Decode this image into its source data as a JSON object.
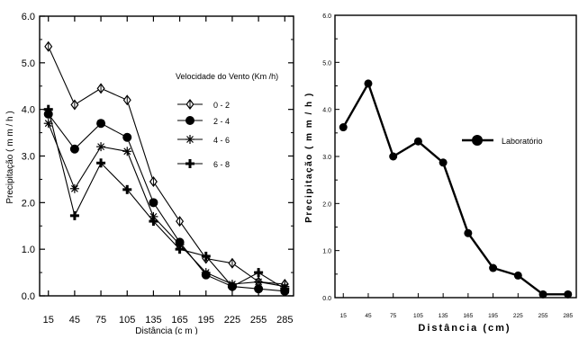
{
  "chart_data": [
    {
      "type": "line",
      "xlabel": "Distância (c m )",
      "ylabel": "Precipitação ( m m / h )",
      "x": [
        15,
        45,
        75,
        105,
        135,
        165,
        195,
        225,
        255,
        285
      ],
      "x_tick_labels": [
        "15",
        "45",
        "75",
        "105",
        "135",
        "165",
        "195",
        "225",
        "255",
        "285"
      ],
      "y_tick_labels": [
        "0.0",
        "1.0",
        "2.0",
        "3.0",
        "4.0",
        "5.0",
        "6.0"
      ],
      "ylim": [
        0,
        6
      ],
      "legend_title": "Velocidade do Vento (Km /h)",
      "legend_position": "right",
      "series": [
        {
          "name": "0 - 2",
          "marker": "diamond",
          "values": [
            5.35,
            4.1,
            4.45,
            4.2,
            2.45,
            1.6,
            0.8,
            0.7,
            0.3,
            0.25
          ]
        },
        {
          "name": "2 - 4",
          "marker": "circle",
          "values": [
            3.9,
            3.15,
            3.7,
            3.4,
            2.0,
            1.15,
            0.45,
            0.2,
            0.15,
            0.1
          ]
        },
        {
          "name": "4 - 6",
          "marker": "asterisk",
          "values": [
            3.7,
            2.3,
            3.2,
            3.1,
            1.7,
            1.1,
            0.5,
            0.25,
            0.3,
            0.2
          ]
        },
        {
          "name": "6 - 8",
          "marker": "cross",
          "values": [
            4.0,
            1.72,
            2.85,
            2.28,
            1.6,
            1.0,
            0.85,
            0.2,
            0.5,
            0.15
          ]
        }
      ]
    },
    {
      "type": "line",
      "xlabel": "Distância (cm)",
      "ylabel": "Precipitação ( m m / h )",
      "x": [
        15,
        45,
        75,
        105,
        135,
        165,
        195,
        225,
        255,
        285
      ],
      "x_tick_labels": [
        "15",
        "45",
        "75",
        "105",
        "135",
        "165",
        "195",
        "225",
        "255",
        "285"
      ],
      "y_tick_labels": [
        "0.0",
        "1.0",
        "2.0",
        "3.0",
        "4.0",
        "5.0",
        "6.0"
      ],
      "ylim": [
        0,
        6
      ],
      "legend_position": "right",
      "series": [
        {
          "name": "Laboratório",
          "marker": "circle",
          "values": [
            3.62,
            4.55,
            3.0,
            3.32,
            2.87,
            1.37,
            0.63,
            0.47,
            0.07,
            0.07
          ]
        }
      ]
    }
  ]
}
